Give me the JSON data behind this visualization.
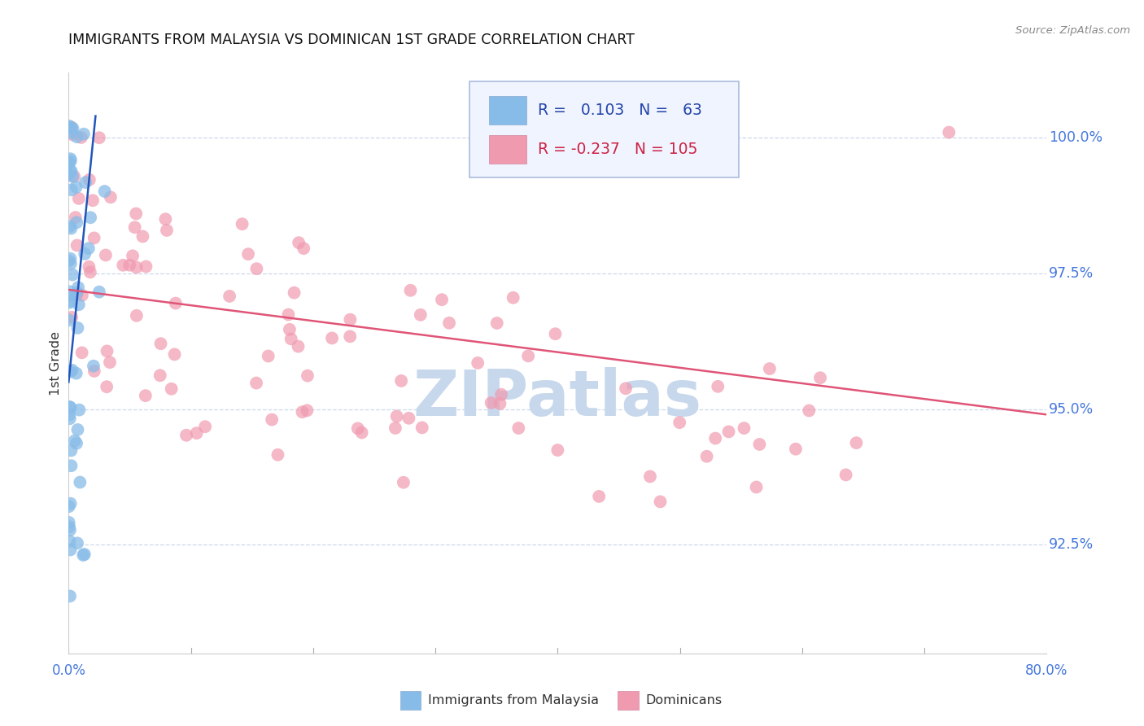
{
  "title": "IMMIGRANTS FROM MALAYSIA VS DOMINICAN 1ST GRADE CORRELATION CHART",
  "source": "Source: ZipAtlas.com",
  "ylabel": "1st Grade",
  "xmin": 0.0,
  "xmax": 80.0,
  "ymin": 90.5,
  "ymax": 101.2,
  "ytick_vals": [
    92.5,
    95.0,
    97.5,
    100.0
  ],
  "ytick_labels": [
    "92.5%",
    "95.0%",
    "97.5%",
    "100.0%"
  ],
  "xtick_labels": [
    "0.0%",
    "80.0%"
  ],
  "legend_R_blue": "0.103",
  "legend_N_blue": "63",
  "legend_R_pink": "-0.237",
  "legend_N_pink": "105",
  "legend_label_blue": "Immigrants from Malaysia",
  "legend_label_pink": "Dominicans",
  "scatter_blue_color": "#88bce8",
  "scatter_pink_color": "#f09ab0",
  "trend_blue_color": "#2255bb",
  "trend_pink_color": "#e05577",
  "axis_color": "#4477dd",
  "title_color": "#111111",
  "grid_color": "#ccd8ec",
  "watermark_color": "#c8d8ec",
  "bg_color": "#ffffff",
  "blue_trend_x0": 0.0,
  "blue_trend_x1": 2.2,
  "blue_trend_y0": 95.5,
  "blue_trend_y1": 100.4,
  "pink_trend_x0": 0.0,
  "pink_trend_x1": 80.0,
  "pink_trend_y0": 97.2,
  "pink_trend_y1": 94.9
}
